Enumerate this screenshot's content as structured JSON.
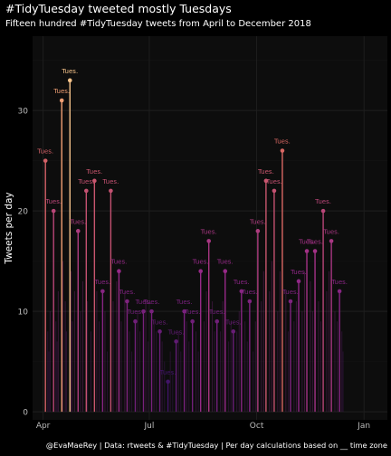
{
  "chart_data": {
    "type": "lollipop",
    "title": "#TidyTuesday tweeted mostly Tuesdays",
    "subtitle": "Fifteen hundred #TidyTuesday tweets from April to December 2018",
    "ylabel": "Tweets per day",
    "caption": "@EvaMaeRey | Data: rtweets & #TidyTuesday | Per day calculations based on __ time zone",
    "ylim": [
      0,
      35
    ],
    "y_ticks": [
      0,
      10,
      20,
      30
    ],
    "x_range": [
      -9,
      295
    ],
    "x_ticks": [
      {
        "label": "Apr",
        "day": 0
      },
      {
        "label": "Jul",
        "day": 91
      },
      {
        "label": "Oct",
        "day": 183
      },
      {
        "label": "Jan",
        "day": 275
      }
    ],
    "grid": true,
    "legend": "none",
    "colors": {
      "background": "#000000",
      "panel": "#0d0d0d",
      "grid": "#1f1f1f",
      "text": "#ffffff",
      "axis_text": "#bbbbbb",
      "low": "#2a0e5e",
      "mid": "#9c2a8a",
      "high": "#e8755a",
      "top": "#fde7a0"
    },
    "label_text": "Tues.",
    "tuesdays": [
      {
        "day": 2,
        "value": 25
      },
      {
        "day": 9,
        "value": 20
      },
      {
        "day": 16,
        "value": 31
      },
      {
        "day": 23,
        "value": 33
      },
      {
        "day": 30,
        "value": 18
      },
      {
        "day": 37,
        "value": 22
      },
      {
        "day": 44,
        "value": 23
      },
      {
        "day": 51,
        "value": 12
      },
      {
        "day": 58,
        "value": 22
      },
      {
        "day": 65,
        "value": 14
      },
      {
        "day": 72,
        "value": 11
      },
      {
        "day": 79,
        "value": 9
      },
      {
        "day": 86,
        "value": 10
      },
      {
        "day": 93,
        "value": 10
      },
      {
        "day": 100,
        "value": 8
      },
      {
        "day": 107,
        "value": 3
      },
      {
        "day": 114,
        "value": 7
      },
      {
        "day": 121,
        "value": 10
      },
      {
        "day": 128,
        "value": 9
      },
      {
        "day": 135,
        "value": 14
      },
      {
        "day": 142,
        "value": 17
      },
      {
        "day": 149,
        "value": 9
      },
      {
        "day": 156,
        "value": 14
      },
      {
        "day": 163,
        "value": 8
      },
      {
        "day": 170,
        "value": 12
      },
      {
        "day": 177,
        "value": 11
      },
      {
        "day": 184,
        "value": 18
      },
      {
        "day": 191,
        "value": 23
      },
      {
        "day": 198,
        "value": 22
      },
      {
        "day": 205,
        "value": 26
      },
      {
        "day": 212,
        "value": 11
      },
      {
        "day": 219,
        "value": 13
      },
      {
        "day": 226,
        "value": 16
      },
      {
        "day": 233,
        "value": 16
      },
      {
        "day": 240,
        "value": 20
      },
      {
        "day": 247,
        "value": 17
      },
      {
        "day": 254,
        "value": 12
      }
    ],
    "other_days": [
      {
        "day": 4,
        "value": 8
      },
      {
        "day": 5,
        "value": 6
      },
      {
        "day": 6,
        "value": 10
      },
      {
        "day": 11,
        "value": 9
      },
      {
        "day": 12,
        "value": 7
      },
      {
        "day": 13,
        "value": 12
      },
      {
        "day": 17,
        "value": 15
      },
      {
        "day": 19,
        "value": 11
      },
      {
        "day": 20,
        "value": 8
      },
      {
        "day": 24,
        "value": 14
      },
      {
        "day": 25,
        "value": 9
      },
      {
        "day": 27,
        "value": 12
      },
      {
        "day": 32,
        "value": 10
      },
      {
        "day": 34,
        "value": 13
      },
      {
        "day": 38,
        "value": 11
      },
      {
        "day": 41,
        "value": 8
      },
      {
        "day": 46,
        "value": 12
      },
      {
        "day": 48,
        "value": 9
      },
      {
        "day": 53,
        "value": 10
      },
      {
        "day": 55,
        "value": 6
      },
      {
        "day": 60,
        "value": 11
      },
      {
        "day": 63,
        "value": 13
      },
      {
        "day": 67,
        "value": 9
      },
      {
        "day": 70,
        "value": 12
      },
      {
        "day": 74,
        "value": 8
      },
      {
        "day": 76,
        "value": 6
      },
      {
        "day": 81,
        "value": 10
      },
      {
        "day": 83,
        "value": 8
      },
      {
        "day": 88,
        "value": 11
      },
      {
        "day": 90,
        "value": 7
      },
      {
        "day": 95,
        "value": 9
      },
      {
        "day": 97,
        "value": 8
      },
      {
        "day": 102,
        "value": 7
      },
      {
        "day": 104,
        "value": 5
      },
      {
        "day": 109,
        "value": 6
      },
      {
        "day": 111,
        "value": 4
      },
      {
        "day": 116,
        "value": 8
      },
      {
        "day": 118,
        "value": 6
      },
      {
        "day": 123,
        "value": 9
      },
      {
        "day": 125,
        "value": 7
      },
      {
        "day": 131,
        "value": 8
      },
      {
        "day": 133,
        "value": 6
      },
      {
        "day": 138,
        "value": 9
      },
      {
        "day": 140,
        "value": 12
      },
      {
        "day": 145,
        "value": 11
      },
      {
        "day": 147,
        "value": 8
      },
      {
        "day": 152,
        "value": 8
      },
      {
        "day": 154,
        "value": 11
      },
      {
        "day": 159,
        "value": 7
      },
      {
        "day": 161,
        "value": 9
      },
      {
        "day": 166,
        "value": 8
      },
      {
        "day": 168,
        "value": 10
      },
      {
        "day": 173,
        "value": 9
      },
      {
        "day": 175,
        "value": 7
      },
      {
        "day": 180,
        "value": 6
      },
      {
        "day": 182,
        "value": 9
      },
      {
        "day": 187,
        "value": 11
      },
      {
        "day": 189,
        "value": 14
      },
      {
        "day": 194,
        "value": 12
      },
      {
        "day": 196,
        "value": 15
      },
      {
        "day": 201,
        "value": 10
      },
      {
        "day": 203,
        "value": 14
      },
      {
        "day": 208,
        "value": 12
      },
      {
        "day": 210,
        "value": 8
      },
      {
        "day": 215,
        "value": 9
      },
      {
        "day": 217,
        "value": 11
      },
      {
        "day": 222,
        "value": 10
      },
      {
        "day": 224,
        "value": 14
      },
      {
        "day": 229,
        "value": 13
      },
      {
        "day": 231,
        "value": 10
      },
      {
        "day": 236,
        "value": 11
      },
      {
        "day": 238,
        "value": 9
      },
      {
        "day": 243,
        "value": 12
      },
      {
        "day": 245,
        "value": 14
      },
      {
        "day": 250,
        "value": 10
      },
      {
        "day": 252,
        "value": 9
      },
      {
        "day": 256,
        "value": 8
      },
      {
        "day": 257,
        "value": 6
      }
    ]
  }
}
